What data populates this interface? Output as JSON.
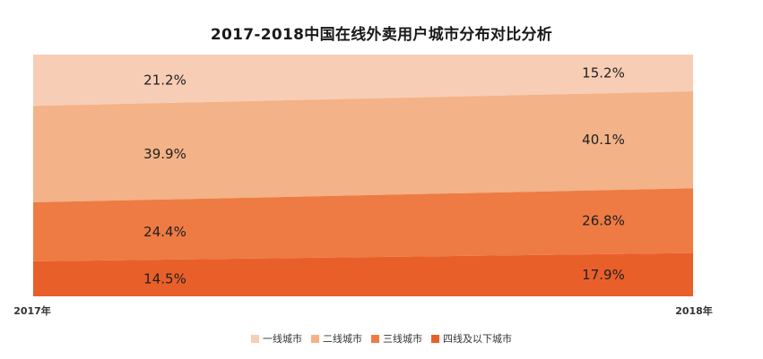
{
  "chart_data": {
    "type": "area",
    "title": "2017-2018中国在线外卖用户城市分布对比分析",
    "categories": [
      "2017年",
      "2018年"
    ],
    "series": [
      {
        "name": "一线城市",
        "values": [
          21.2,
          15.2
        ],
        "labels": [
          "21.2%",
          "15.2%"
        ],
        "color": "#f8cdb5"
      },
      {
        "name": "二线城市",
        "values": [
          39.9,
          40.1
        ],
        "labels": [
          "39.9%",
          "40.1%"
        ],
        "color": "#f3b287"
      },
      {
        "name": "三线城市",
        "values": [
          24.4,
          26.8
        ],
        "labels": [
          "24.4%",
          "26.8%"
        ],
        "color": "#ee7b43"
      },
      {
        "name": "四线及以下城市",
        "values": [
          14.5,
          17.9
        ],
        "labels": [
          "14.5%",
          "17.9%"
        ],
        "color": "#e95f2a"
      }
    ],
    "stacked": true,
    "ylim": [
      0,
      100
    ],
    "legend_position": "bottom"
  }
}
